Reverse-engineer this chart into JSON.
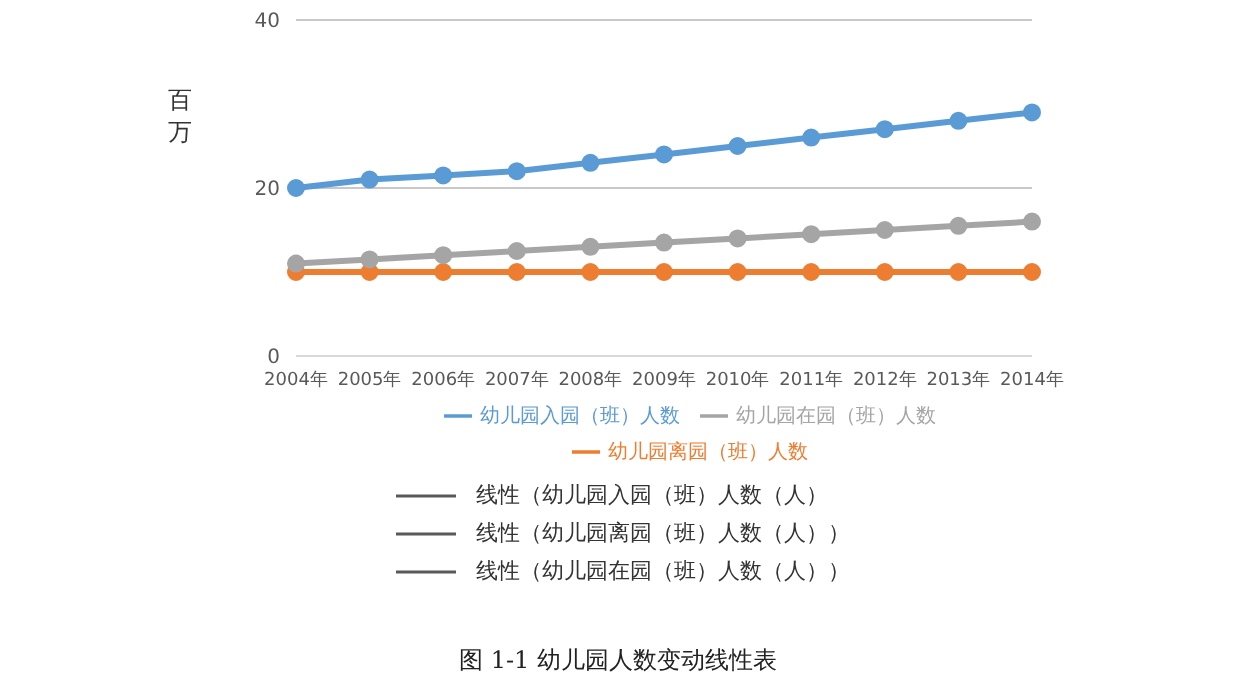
{
  "chart_data": {
    "type": "line",
    "title": "图 1-1 幼儿园人数变动线性表",
    "ylabel": "百万",
    "categories": [
      "2004年",
      "2005年",
      "2006年",
      "2007年",
      "2008年",
      "2009年",
      "2010年",
      "2011年",
      "2012年",
      "2013年",
      "2014年"
    ],
    "series": [
      {
        "name": "幼儿园入园（班）人数",
        "color": "#5b9bd5",
        "values": [
          20,
          21,
          21.5,
          22,
          23,
          24,
          25,
          26,
          27,
          28,
          29
        ]
      },
      {
        "name": "幼儿园离园（班）人数",
        "color": "#ed7d31",
        "values": [
          10,
          10,
          10,
          10,
          10,
          10,
          10,
          10,
          10,
          10,
          10
        ]
      },
      {
        "name": "幼儿园在园（班）人数",
        "color": "#a5a5a5",
        "values": [
          11,
          11.5,
          12,
          12.5,
          13,
          13.5,
          14,
          14.5,
          15,
          15.5,
          16
        ]
      }
    ],
    "annotations": [
      "线性（幼儿园入园（班）人数（人）",
      "线性（幼儿园离园（班）人数（人））",
      "线性（幼儿园在园（班）人数（人））"
    ],
    "ylim": [
      0,
      40
    ],
    "yticks": [
      0,
      20,
      40
    ],
    "grid": "y",
    "legend": "bottom",
    "marker": "circle",
    "line_style": "solid"
  }
}
